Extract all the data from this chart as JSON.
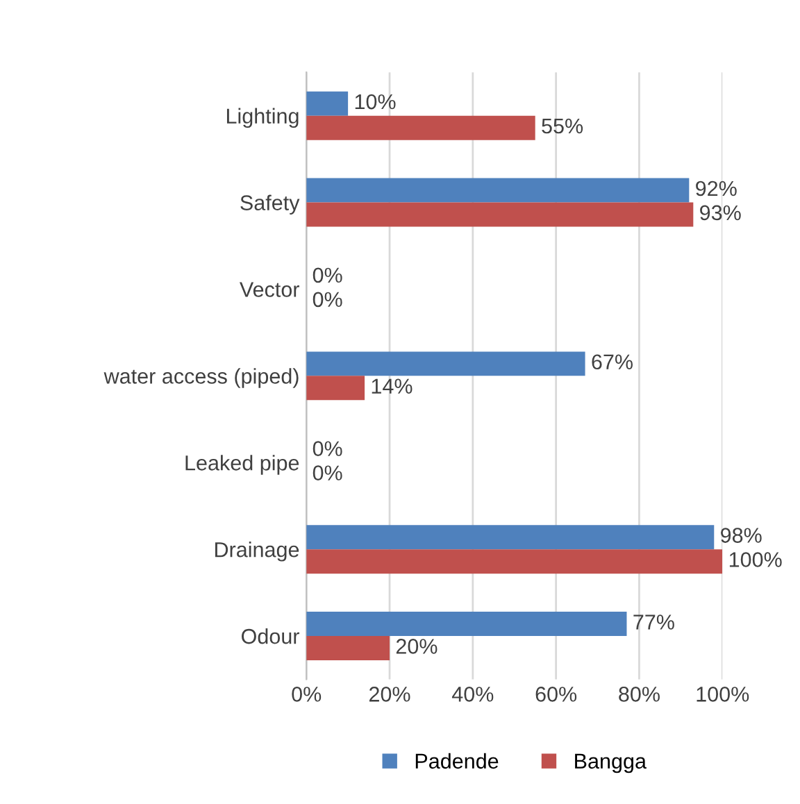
{
  "chart_data": {
    "type": "bar",
    "orientation": "horizontal",
    "categories": [
      "Lighting",
      "Safety",
      "Vector",
      "water access (piped)",
      "Leaked pipe",
      "Drainage",
      "Odour"
    ],
    "series": [
      {
        "name": "Padende",
        "color": "#4f81bd",
        "values": [
          10,
          92,
          0,
          67,
          0,
          98,
          77
        ],
        "value_labels": [
          "10%",
          "92%",
          "0%",
          "67%",
          "0%",
          "98%",
          "77%"
        ]
      },
      {
        "name": "Bangga",
        "color": "#c0504d",
        "values": [
          55,
          93,
          0,
          14,
          0,
          100,
          20
        ],
        "value_labels": [
          "55%",
          "93%",
          "0%",
          "14%",
          "0%",
          "100%",
          "20%"
        ]
      }
    ],
    "xlim": [
      0,
      100
    ],
    "xticks": [
      {
        "value": 0,
        "label": "0%"
      },
      {
        "value": 20,
        "label": "20%"
      },
      {
        "value": 40,
        "label": "40%"
      },
      {
        "value": 60,
        "label": "60%"
      },
      {
        "value": 80,
        "label": "80%"
      },
      {
        "value": 100,
        "label": "100%"
      }
    ],
    "grid": "x",
    "legend": "bottom"
  }
}
